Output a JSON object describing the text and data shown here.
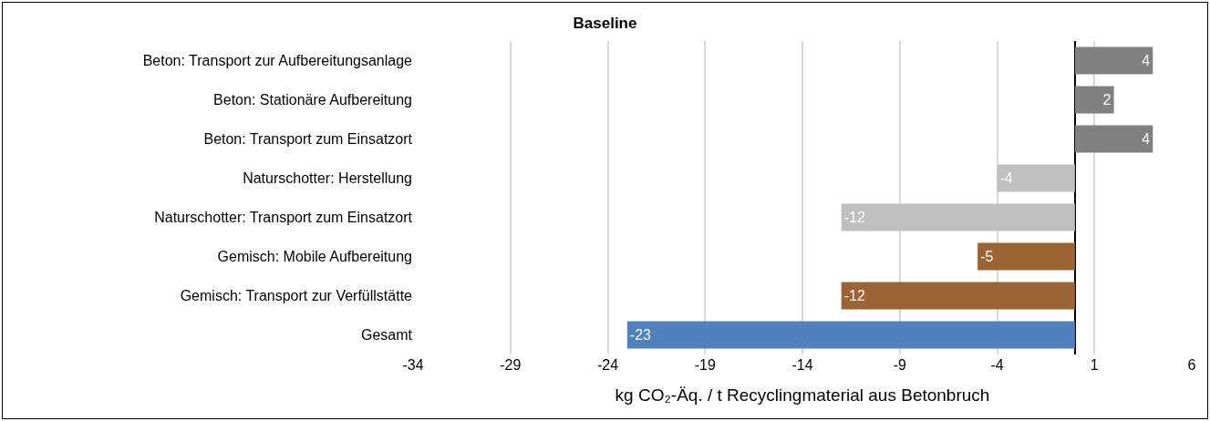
{
  "chart_data": {
    "type": "bar",
    "orientation": "horizontal",
    "title": "Baseline",
    "xlabel": "kg CO₂-Äq. / t Recyclingmaterial aus Betonbruch",
    "categories": [
      "Beton: Transport zur Aufbereitungsanlage",
      "Beton: Stationäre Aufbereitung",
      "Beton: Transport zum Einsatzort",
      "Naturschotter: Herstellung",
      "Naturschotter: Transport zum Einsatzort",
      "Gemisch: Mobile Aufbereitung",
      "Gemisch: Transport zur Verfüllstätte",
      "Gesamt"
    ],
    "values": [
      4,
      2,
      4,
      -4,
      -12,
      -5,
      -12,
      -23
    ],
    "colors": [
      "#808080",
      "#808080",
      "#808080",
      "#bfbfbf",
      "#bfbfbf",
      "#9c6434",
      "#9c6434",
      "#4f81bd"
    ],
    "data_labels": true,
    "xlim": [
      -34,
      6
    ],
    "xticks": [
      -34,
      -29,
      -24,
      -19,
      -14,
      -9,
      -4,
      1,
      6
    ],
    "grid": "x"
  }
}
